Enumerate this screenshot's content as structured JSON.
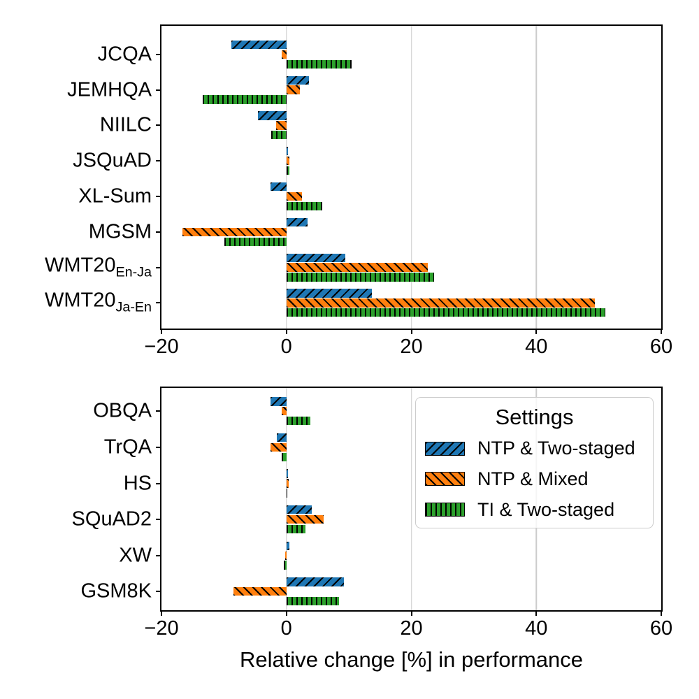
{
  "figure": {
    "xlabel": "Relative change [%] in performance"
  },
  "legend": {
    "title": "Settings",
    "entries": [
      {
        "label": "NTP & Two-staged",
        "color": "#1f77b4",
        "hatch": "diagonal-up"
      },
      {
        "label": "NTP & Mixed",
        "color": "#ff7f0e",
        "hatch": "diagonal-down"
      },
      {
        "label": "TI & Two-staged",
        "color": "#2ca02c",
        "hatch": "vertical"
      }
    ]
  },
  "colors": {
    "blue": "#1f77b4",
    "orange": "#ff7f0e",
    "green": "#2ca02c",
    "grid": "#cccccc",
    "spine": "#000000"
  },
  "chart_data": [
    {
      "type": "bar",
      "orientation": "horizontal",
      "panel": "top",
      "xlim": [
        -20,
        60
      ],
      "grid": true,
      "xticks": [
        {
          "value": -20,
          "label": "−20"
        },
        {
          "value": 0,
          "label": "0"
        },
        {
          "value": 20,
          "label": "20"
        },
        {
          "value": 40,
          "label": "40"
        },
        {
          "value": 60,
          "label": "60"
        }
      ],
      "categories": [
        {
          "main": "JCQA",
          "sub": ""
        },
        {
          "main": "JEMHQA",
          "sub": ""
        },
        {
          "main": "NIILC",
          "sub": ""
        },
        {
          "main": "JSQuAD",
          "sub": ""
        },
        {
          "main": "XL-Sum",
          "sub": ""
        },
        {
          "main": "MGSM",
          "sub": ""
        },
        {
          "main": "WMT20",
          "sub": "En-Ja"
        },
        {
          "main": "WMT20",
          "sub": "Ja-En"
        }
      ],
      "series": [
        {
          "name": "NTP & Two-staged",
          "color": "#1f77b4",
          "hatch": "diagonal-up",
          "values": [
            -8.8,
            3.6,
            -4.6,
            0.3,
            -2.5,
            3.4,
            9.4,
            13.7
          ]
        },
        {
          "name": "NTP & Mixed",
          "color": "#ff7f0e",
          "hatch": "diagonal-down",
          "values": [
            -0.8,
            2.2,
            -1.6,
            0.5,
            2.5,
            -16.6,
            22.6,
            49.4
          ]
        },
        {
          "name": "TI & Two-staged",
          "color": "#2ca02c",
          "hatch": "vertical",
          "values": [
            10.4,
            -13.4,
            -2.4,
            0.5,
            5.7,
            -9.9,
            23.6,
            51.0
          ]
        }
      ]
    },
    {
      "type": "bar",
      "orientation": "horizontal",
      "panel": "bottom",
      "xlim": [
        -20,
        60
      ],
      "grid": true,
      "xticks": [
        {
          "value": -20,
          "label": "−20"
        },
        {
          "value": 0,
          "label": "0"
        },
        {
          "value": 20,
          "label": "20"
        },
        {
          "value": 40,
          "label": "40"
        },
        {
          "value": 60,
          "label": "60"
        }
      ],
      "categories": [
        {
          "main": "OBQA",
          "sub": ""
        },
        {
          "main": "TrQA",
          "sub": ""
        },
        {
          "main": "HS",
          "sub": ""
        },
        {
          "main": "SQuAD2",
          "sub": ""
        },
        {
          "main": "XW",
          "sub": ""
        },
        {
          "main": "GSM8K",
          "sub": ""
        }
      ],
      "series": [
        {
          "name": "NTP & Two-staged",
          "color": "#1f77b4",
          "hatch": "diagonal-up",
          "values": [
            -2.5,
            -1.5,
            0.3,
            4.1,
            0.5,
            9.2
          ]
        },
        {
          "name": "NTP & Mixed",
          "color": "#ff7f0e",
          "hatch": "diagonal-down",
          "values": [
            -0.7,
            -2.5,
            0.4,
            6.0,
            -0.2,
            -8.5
          ]
        },
        {
          "name": "TI & Two-staged",
          "color": "#2ca02c",
          "hatch": "vertical",
          "values": [
            3.8,
            -0.8,
            0.1,
            3.1,
            -0.4,
            8.4
          ]
        }
      ]
    }
  ]
}
